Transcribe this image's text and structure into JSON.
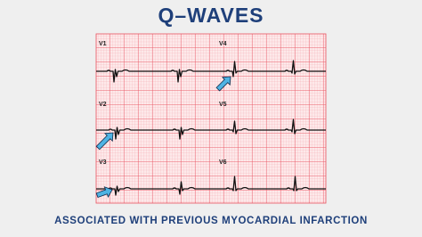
{
  "header": {
    "title": "Q–WAVES"
  },
  "leads": [
    {
      "label": "V1"
    },
    {
      "label": "V2"
    },
    {
      "label": "V3"
    },
    {
      "label": "V4"
    },
    {
      "label": "V5"
    },
    {
      "label": "V6"
    }
  ],
  "caption": "ASSOCIATED WITH PREVIOUS MYOCARDIAL INFARCTION"
}
